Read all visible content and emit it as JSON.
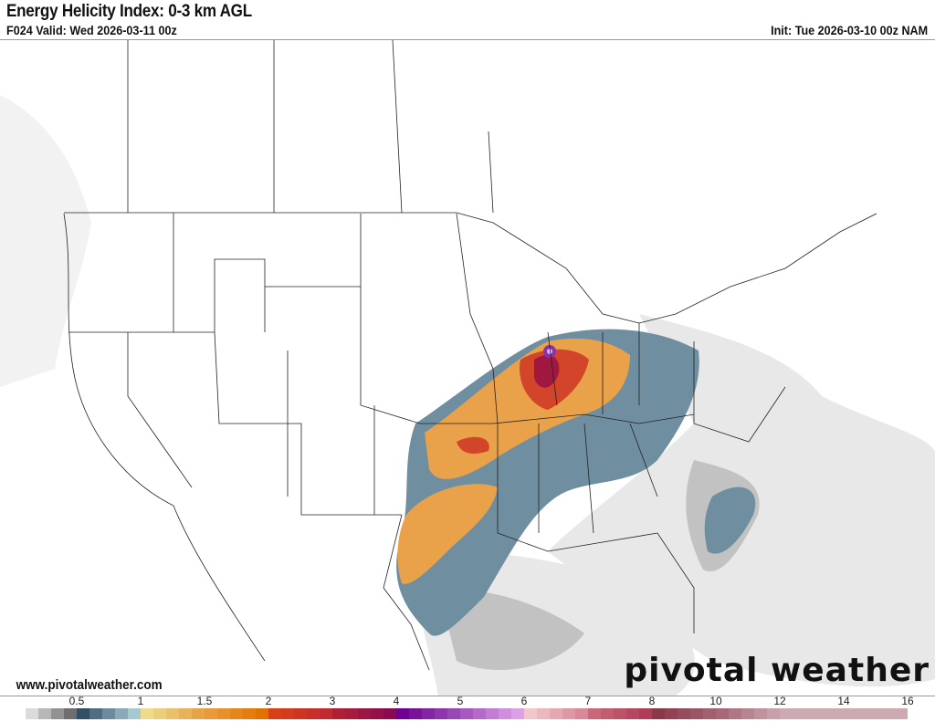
{
  "header": {
    "title": "Energy Helicity Index: 0-3 km AGL",
    "valid": "F024 Valid: Wed 2026-03-11 00z",
    "init": "Init: Tue 2026-03-10 00z NAM"
  },
  "footer": {
    "website": "www.pivotalweather.com",
    "brand": "pivotal weather"
  },
  "colorbar": {
    "labels": [
      {
        "text": "0.5",
        "value": 0.5
      },
      {
        "text": "1",
        "value": 1
      },
      {
        "text": "1.5",
        "value": 1.5
      },
      {
        "text": "2",
        "value": 2
      },
      {
        "text": "3",
        "value": 3
      },
      {
        "text": "4",
        "value": 4
      },
      {
        "text": "5",
        "value": 5
      },
      {
        "text": "6",
        "value": 6
      },
      {
        "text": "7",
        "value": 7
      },
      {
        "text": "8",
        "value": 8
      },
      {
        "text": "10",
        "value": 10
      },
      {
        "text": "12",
        "value": 12
      },
      {
        "text": "14",
        "value": 14
      },
      {
        "text": "16",
        "value": 16
      }
    ],
    "segments": [
      {
        "from": "#ffffff",
        "to": "#6e6e6e"
      },
      {
        "from": "#334f66",
        "to": "#a6c8d0"
      },
      {
        "from": "#ecdc8c",
        "to": "#e5a449"
      },
      {
        "from": "#e89a3a",
        "to": "#e27200"
      },
      {
        "from": "#d84018",
        "to": "#c02a30"
      },
      {
        "from": "#b02035",
        "to": "#8a0a50"
      },
      {
        "from": "#700090",
        "to": "#9648b4"
      },
      {
        "from": "#a858c0",
        "to": "#dca0e8"
      },
      {
        "from": "#f0c8cc",
        "to": "#d88898"
      },
      {
        "from": "#c86878",
        "to": "#b03c58"
      },
      {
        "from": "#8a3848",
        "to": "#a06070"
      },
      {
        "from": "#a86878",
        "to": "#c8a0a8"
      },
      {
        "from": "#ccaab0",
        "to": "#ccaab0"
      },
      {
        "from": "#ccaab0",
        "to": "#ccaab0"
      }
    ]
  },
  "map": {
    "colors": {
      "gray": "#cfcfcf",
      "blue": "#6f8fa0",
      "orange": "#e9a24a",
      "red": "#d2452a",
      "crimson": "#a01840",
      "purple": "#8a30b0"
    }
  }
}
